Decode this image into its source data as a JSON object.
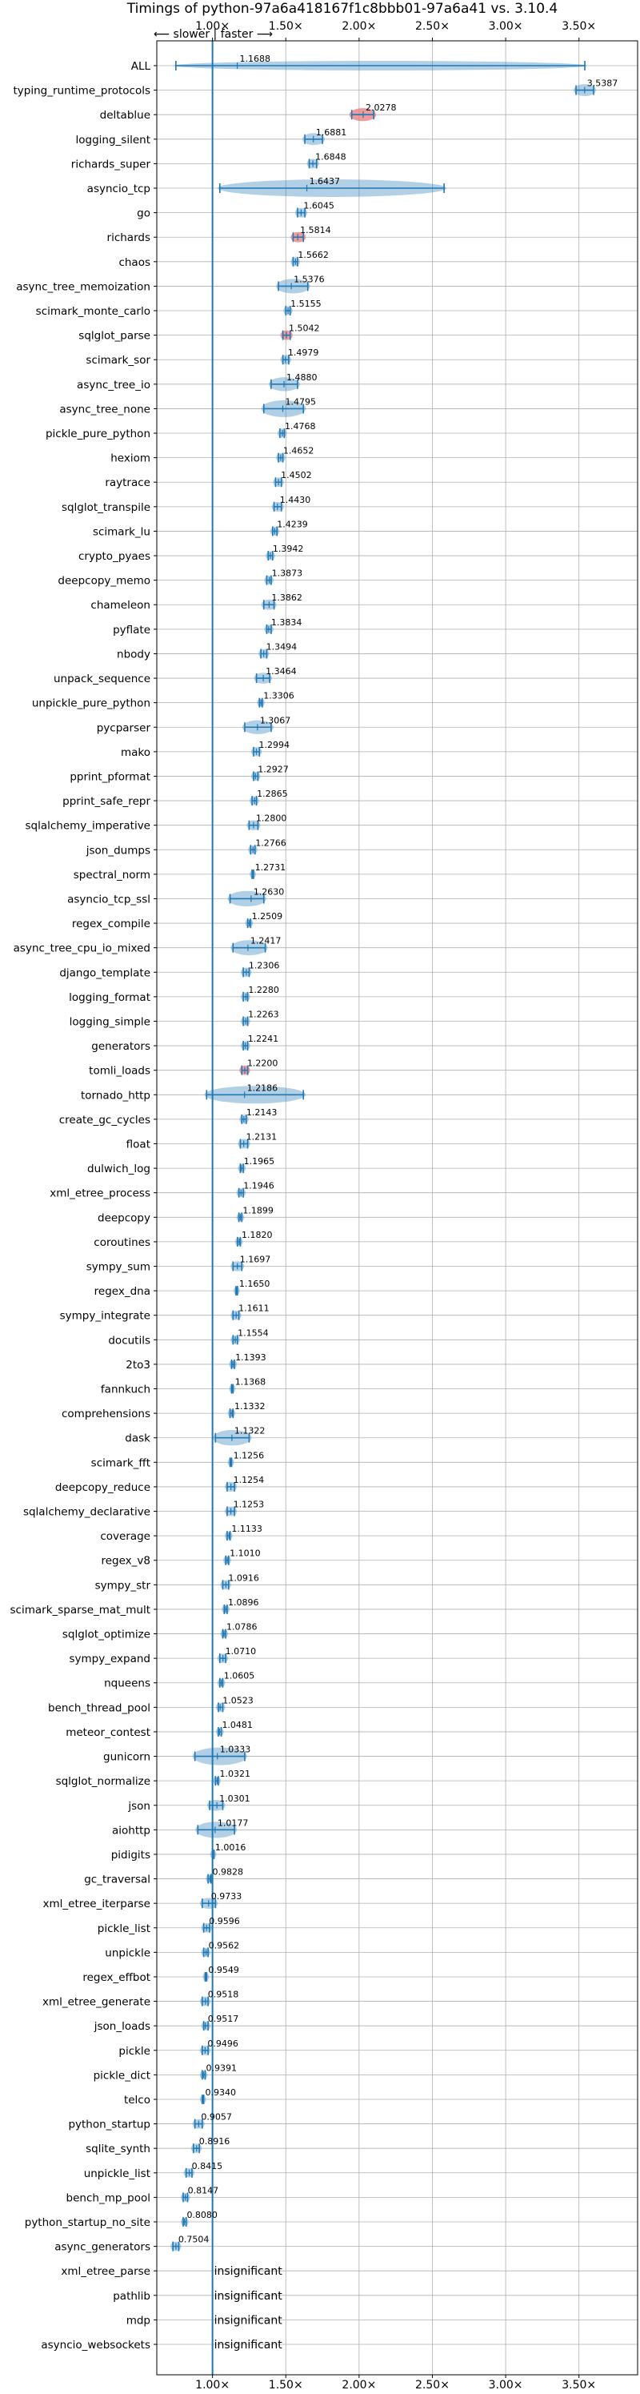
{
  "chart_data": {
    "type": "violin",
    "title": "Timings of python-97a6a418167f1c8bbb01-97a6a41 vs. 3.10.4",
    "direction_label": "⟵ slower | faster ⟶",
    "xlabel": "",
    "ylabel": "",
    "xlim": [
      0.62,
      3.9
    ],
    "x_ticks": [
      1.0,
      1.5,
      2.0,
      2.5,
      3.0,
      3.5
    ],
    "x_tick_labels": [
      "1.00×",
      "1.50×",
      "2.00×",
      "2.50×",
      "3.00×",
      "3.50×"
    ],
    "grid": true,
    "reference_line": 1.0,
    "insignificant_label": "insignificant",
    "colors": {
      "violin": "#1f77b4",
      "highlight": "#e8797a",
      "grid": "#b0b0b0",
      "text": "#000000"
    },
    "benchmarks": [
      {
        "name": "ALL",
        "value": 1.1688,
        "min": 0.75,
        "max": 3.54
      },
      {
        "name": "typing_runtime_protocols",
        "value": 3.5387,
        "min": 3.48,
        "max": 3.6
      },
      {
        "name": "deltablue",
        "value": 2.0278,
        "min": 1.95,
        "max": 2.1,
        "highlight": true
      },
      {
        "name": "logging_silent",
        "value": 1.6881,
        "min": 1.63,
        "max": 1.75
      },
      {
        "name": "richards_super",
        "value": 1.6848,
        "min": 1.66,
        "max": 1.71
      },
      {
        "name": "asyncio_tcp",
        "value": 1.6437,
        "min": 1.05,
        "max": 2.58
      },
      {
        "name": "go",
        "value": 1.6045,
        "min": 1.58,
        "max": 1.63
      },
      {
        "name": "richards",
        "value": 1.5814,
        "min": 1.55,
        "max": 1.62,
        "highlight": true
      },
      {
        "name": "chaos",
        "value": 1.5662,
        "min": 1.55,
        "max": 1.58
      },
      {
        "name": "async_tree_memoization",
        "value": 1.5376,
        "min": 1.45,
        "max": 1.65
      },
      {
        "name": "scimark_monte_carlo",
        "value": 1.5155,
        "min": 1.5,
        "max": 1.53
      },
      {
        "name": "sqlglot_parse",
        "value": 1.5042,
        "min": 1.48,
        "max": 1.53,
        "highlight": true
      },
      {
        "name": "scimark_sor",
        "value": 1.4979,
        "min": 1.48,
        "max": 1.52
      },
      {
        "name": "async_tree_io",
        "value": 1.488,
        "min": 1.4,
        "max": 1.58
      },
      {
        "name": "async_tree_none",
        "value": 1.4795,
        "min": 1.35,
        "max": 1.62
      },
      {
        "name": "pickle_pure_python",
        "value": 1.4768,
        "min": 1.46,
        "max": 1.49
      },
      {
        "name": "hexiom",
        "value": 1.4652,
        "min": 1.45,
        "max": 1.48
      },
      {
        "name": "raytrace",
        "value": 1.4502,
        "min": 1.43,
        "max": 1.47
      },
      {
        "name": "sqlglot_transpile",
        "value": 1.443,
        "min": 1.42,
        "max": 1.47
      },
      {
        "name": "scimark_lu",
        "value": 1.4239,
        "min": 1.41,
        "max": 1.44
      },
      {
        "name": "crypto_pyaes",
        "value": 1.3942,
        "min": 1.38,
        "max": 1.41
      },
      {
        "name": "deepcopy_memo",
        "value": 1.3873,
        "min": 1.37,
        "max": 1.4
      },
      {
        "name": "chameleon",
        "value": 1.3862,
        "min": 1.35,
        "max": 1.42
      },
      {
        "name": "pyflate",
        "value": 1.3834,
        "min": 1.37,
        "max": 1.4
      },
      {
        "name": "nbody",
        "value": 1.3494,
        "min": 1.33,
        "max": 1.37
      },
      {
        "name": "unpack_sequence",
        "value": 1.3464,
        "min": 1.3,
        "max": 1.39
      },
      {
        "name": "unpickle_pure_python",
        "value": 1.3306,
        "min": 1.32,
        "max": 1.34
      },
      {
        "name": "pycparser",
        "value": 1.3067,
        "min": 1.22,
        "max": 1.4
      },
      {
        "name": "mako",
        "value": 1.2994,
        "min": 1.28,
        "max": 1.32
      },
      {
        "name": "pprint_pformat",
        "value": 1.2927,
        "min": 1.28,
        "max": 1.31
      },
      {
        "name": "pprint_safe_repr",
        "value": 1.2865,
        "min": 1.27,
        "max": 1.3
      },
      {
        "name": "sqlalchemy_imperative",
        "value": 1.28,
        "min": 1.25,
        "max": 1.31
      },
      {
        "name": "json_dumps",
        "value": 1.2766,
        "min": 1.26,
        "max": 1.29
      },
      {
        "name": "spectral_norm",
        "value": 1.2731,
        "min": 1.27,
        "max": 1.28
      },
      {
        "name": "asyncio_tcp_ssl",
        "value": 1.263,
        "min": 1.12,
        "max": 1.35
      },
      {
        "name": "regex_compile",
        "value": 1.2509,
        "min": 1.24,
        "max": 1.26
      },
      {
        "name": "async_tree_cpu_io_mixed",
        "value": 1.2417,
        "min": 1.14,
        "max": 1.36
      },
      {
        "name": "django_template",
        "value": 1.2306,
        "min": 1.21,
        "max": 1.25
      },
      {
        "name": "logging_format",
        "value": 1.228,
        "min": 1.21,
        "max": 1.24
      },
      {
        "name": "logging_simple",
        "value": 1.2263,
        "min": 1.21,
        "max": 1.24
      },
      {
        "name": "generators",
        "value": 1.2241,
        "min": 1.21,
        "max": 1.24
      },
      {
        "name": "tomli_loads",
        "value": 1.22,
        "min": 1.2,
        "max": 1.24,
        "highlight": true
      },
      {
        "name": "tornado_http",
        "value": 1.2186,
        "min": 0.96,
        "max": 1.62
      },
      {
        "name": "create_gc_cycles",
        "value": 1.2143,
        "min": 1.2,
        "max": 1.23
      },
      {
        "name": "float",
        "value": 1.2131,
        "min": 1.19,
        "max": 1.24
      },
      {
        "name": "dulwich_log",
        "value": 1.1965,
        "min": 1.19,
        "max": 1.21
      },
      {
        "name": "xml_etree_process",
        "value": 1.1946,
        "min": 1.18,
        "max": 1.21
      },
      {
        "name": "deepcopy",
        "value": 1.1899,
        "min": 1.18,
        "max": 1.2
      },
      {
        "name": "coroutines",
        "value": 1.182,
        "min": 1.17,
        "max": 1.19
      },
      {
        "name": "sympy_sum",
        "value": 1.1697,
        "min": 1.14,
        "max": 1.2
      },
      {
        "name": "regex_dna",
        "value": 1.165,
        "min": 1.16,
        "max": 1.17
      },
      {
        "name": "sympy_integrate",
        "value": 1.1611,
        "min": 1.14,
        "max": 1.18
      },
      {
        "name": "docutils",
        "value": 1.1554,
        "min": 1.14,
        "max": 1.17
      },
      {
        "name": "2to3",
        "value": 1.1393,
        "min": 1.13,
        "max": 1.15
      },
      {
        "name": "fannkuch",
        "value": 1.1368,
        "min": 1.13,
        "max": 1.14
      },
      {
        "name": "comprehensions",
        "value": 1.1332,
        "min": 1.12,
        "max": 1.14
      },
      {
        "name": "dask",
        "value": 1.1322,
        "min": 1.02,
        "max": 1.25
      },
      {
        "name": "scimark_fft",
        "value": 1.1256,
        "min": 1.12,
        "max": 1.13
      },
      {
        "name": "deepcopy_reduce",
        "value": 1.1254,
        "min": 1.1,
        "max": 1.15
      },
      {
        "name": "sqlalchemy_declarative",
        "value": 1.1253,
        "min": 1.1,
        "max": 1.15
      },
      {
        "name": "coverage",
        "value": 1.1133,
        "min": 1.1,
        "max": 1.12
      },
      {
        "name": "regex_v8",
        "value": 1.101,
        "min": 1.09,
        "max": 1.11
      },
      {
        "name": "sympy_str",
        "value": 1.0916,
        "min": 1.07,
        "max": 1.11
      },
      {
        "name": "scimark_sparse_mat_mult",
        "value": 1.0896,
        "min": 1.08,
        "max": 1.1
      },
      {
        "name": "sqlglot_optimize",
        "value": 1.0786,
        "min": 1.07,
        "max": 1.09
      },
      {
        "name": "sympy_expand",
        "value": 1.071,
        "min": 1.05,
        "max": 1.09
      },
      {
        "name": "nqueens",
        "value": 1.0605,
        "min": 1.05,
        "max": 1.07
      },
      {
        "name": "bench_thread_pool",
        "value": 1.0523,
        "min": 1.04,
        "max": 1.07
      },
      {
        "name": "meteor_contest",
        "value": 1.0481,
        "min": 1.04,
        "max": 1.06
      },
      {
        "name": "gunicorn",
        "value": 1.0333,
        "min": 0.88,
        "max": 1.22
      },
      {
        "name": "sqlglot_normalize",
        "value": 1.0321,
        "min": 1.02,
        "max": 1.04
      },
      {
        "name": "json",
        "value": 1.0301,
        "min": 0.98,
        "max": 1.07
      },
      {
        "name": "aiohttp",
        "value": 1.0177,
        "min": 0.9,
        "max": 1.15
      },
      {
        "name": "pidigits",
        "value": 1.0016,
        "min": 1.0,
        "max": 1.01
      },
      {
        "name": "gc_traversal",
        "value": 0.9828,
        "min": 0.97,
        "max": 0.99
      },
      {
        "name": "xml_etree_iterparse",
        "value": 0.9733,
        "min": 0.93,
        "max": 1.02
      },
      {
        "name": "pickle_list",
        "value": 0.9596,
        "min": 0.94,
        "max": 0.98
      },
      {
        "name": "unpickle",
        "value": 0.9562,
        "min": 0.94,
        "max": 0.97
      },
      {
        "name": "regex_effbot",
        "value": 0.9549,
        "min": 0.95,
        "max": 0.96
      },
      {
        "name": "xml_etree_generate",
        "value": 0.9518,
        "min": 0.93,
        "max": 0.97
      },
      {
        "name": "json_loads",
        "value": 0.9517,
        "min": 0.94,
        "max": 0.97
      },
      {
        "name": "pickle",
        "value": 0.9496,
        "min": 0.93,
        "max": 0.97
      },
      {
        "name": "pickle_dict",
        "value": 0.9391,
        "min": 0.93,
        "max": 0.95
      },
      {
        "name": "telco",
        "value": 0.934,
        "min": 0.93,
        "max": 0.94
      },
      {
        "name": "python_startup",
        "value": 0.9057,
        "min": 0.88,
        "max": 0.93
      },
      {
        "name": "sqlite_synth",
        "value": 0.8916,
        "min": 0.87,
        "max": 0.91
      },
      {
        "name": "unpickle_list",
        "value": 0.8415,
        "min": 0.82,
        "max": 0.86
      },
      {
        "name": "bench_mp_pool",
        "value": 0.8147,
        "min": 0.8,
        "max": 0.83
      },
      {
        "name": "python_startup_no_site",
        "value": 0.808,
        "min": 0.8,
        "max": 0.82
      },
      {
        "name": "async_generators",
        "value": 0.7504,
        "min": 0.73,
        "max": 0.77
      },
      {
        "name": "xml_etree_parse",
        "insignificant": true
      },
      {
        "name": "pathlib",
        "insignificant": true
      },
      {
        "name": "mdp",
        "insignificant": true
      },
      {
        "name": "asyncio_websockets",
        "insignificant": true
      }
    ]
  }
}
